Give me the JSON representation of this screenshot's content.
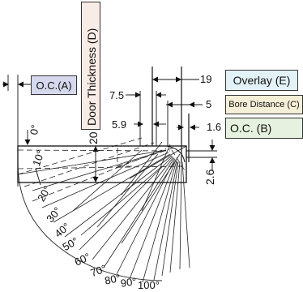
{
  "labels": {
    "oc_a": "O.C.(A)",
    "door_thickness": "Door Thickness (D)",
    "overlay": "Overlay (E)",
    "bore_distance": "Bore Distance (C)",
    "oc_b": "O.C. (B)"
  },
  "dimensions": {
    "d19": "19",
    "d7_5": "7.5",
    "d5": "5",
    "d5_9": "5.9",
    "d1_6": "1.6",
    "d20": "20",
    "d2_6": "2.6"
  },
  "angles": [
    "0°",
    "10°",
    "20°",
    "30°",
    "40°",
    "50°",
    "60°",
    "70°",
    "80°",
    "90°",
    "100°"
  ],
  "colors": {
    "oc_a_fill": "#d6d9ee",
    "door_fill": "#f8ece6",
    "overlay_fill": "#e3f2f7",
    "bore_fill": "#f6efd8",
    "oc_b_fill": "#e6f1e0"
  }
}
